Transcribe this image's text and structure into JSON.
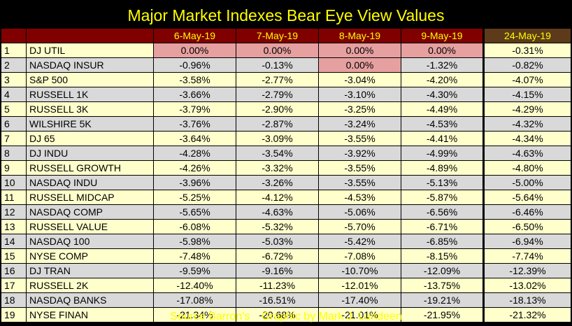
{
  "title": "Major Market Indexes Bear Eye View Values",
  "footer": {
    "source": "Source Barron's",
    "credit": "Graphic by Mark J. Lundeen"
  },
  "colors": {
    "background": "#000000",
    "title": "#ffff00",
    "header": "#800000",
    "header_last": "#5c3a1a",
    "row_odd": "#ffffcc",
    "row_even": "#d9d9d9",
    "zero_highlight": "#e6a0a0"
  },
  "chart_data": {
    "type": "table",
    "title": "Major Market Indexes Bear Eye View Values",
    "columns": [
      "6-May-19",
      "7-May-19",
      "8-May-19",
      "9-May-19",
      "24-May-19"
    ],
    "rows": [
      {
        "rank": "1",
        "name": "DJ  UTIL",
        "values": [
          "0.00%",
          "0.00%",
          "0.00%",
          "0.00%",
          "-0.31%"
        ]
      },
      {
        "rank": "2",
        "name": "NASDAQ INSUR",
        "values": [
          "-0.96%",
          "-0.13%",
          "0.00%",
          "-1.32%",
          "-0.82%"
        ]
      },
      {
        "rank": "3",
        "name": "S&P 500",
        "values": [
          "-3.58%",
          "-2.77%",
          "-3.04%",
          "-4.20%",
          "-4.07%"
        ]
      },
      {
        "rank": "4",
        "name": "RUSSELL 1K",
        "values": [
          "-3.66%",
          "-2.79%",
          "-3.10%",
          "-4.30%",
          "-4.15%"
        ]
      },
      {
        "rank": "5",
        "name": "RUSSELL 3K",
        "values": [
          "-3.79%",
          "-2.90%",
          "-3.25%",
          "-4.49%",
          "-4.29%"
        ]
      },
      {
        "rank": "6",
        "name": "WILSHIRE 5K",
        "values": [
          "-3.76%",
          "-2.87%",
          "-3.24%",
          "-4.53%",
          "-4.32%"
        ]
      },
      {
        "rank": "7",
        "name": "DJ  65",
        "values": [
          "-3.64%",
          "-3.09%",
          "-3.55%",
          "-4.41%",
          "-4.34%"
        ]
      },
      {
        "rank": "8",
        "name": "DJ  INDU",
        "values": [
          "-4.28%",
          "-3.54%",
          "-3.92%",
          "-4.99%",
          "-4.63%"
        ]
      },
      {
        "rank": "9",
        "name": "RUSSELL GROWTH",
        "values": [
          "-4.26%",
          "-3.32%",
          "-3.55%",
          "-4.89%",
          "-4.80%"
        ]
      },
      {
        "rank": "10",
        "name": "NASDAQ INDU",
        "values": [
          "-3.96%",
          "-3.26%",
          "-3.55%",
          "-5.13%",
          "-5.00%"
        ]
      },
      {
        "rank": "11",
        "name": "RUSSELL MIDCAP",
        "values": [
          "-5.25%",
          "-4.12%",
          "-4.53%",
          "-5.87%",
          "-5.64%"
        ]
      },
      {
        "rank": "12",
        "name": "NASDAQ COMP",
        "values": [
          "-5.65%",
          "-4.63%",
          "-5.06%",
          "-6.56%",
          "-6.46%"
        ]
      },
      {
        "rank": "13",
        "name": "RUSSELL VALUE",
        "values": [
          "-6.08%",
          "-5.32%",
          "-5.70%",
          "-6.71%",
          "-6.50%"
        ]
      },
      {
        "rank": "14",
        "name": "NASDAQ 100",
        "values": [
          "-5.98%",
          "-5.03%",
          "-5.42%",
          "-6.85%",
          "-6.94%"
        ]
      },
      {
        "rank": "15",
        "name": "NYSE COMP",
        "values": [
          "-7.48%",
          "-6.72%",
          "-7.08%",
          "-8.15%",
          "-7.74%"
        ]
      },
      {
        "rank": "16",
        "name": "DJ  TRAN",
        "values": [
          "-9.59%",
          "-9.16%",
          "-10.70%",
          "-12.09%",
          "-12.39%"
        ]
      },
      {
        "rank": "17",
        "name": "RUSSELL 2K",
        "values": [
          "-12.40%",
          "-11.23%",
          "-12.01%",
          "-13.75%",
          "-13.02%"
        ]
      },
      {
        "rank": "18",
        "name": "NASDAQ BANKS",
        "values": [
          "-17.08%",
          "-16.51%",
          "-17.40%",
          "-19.21%",
          "-18.13%"
        ]
      },
      {
        "rank": "19",
        "name": "NYSE FINAN",
        "values": [
          "-21.34%",
          "-20.68%",
          "-21.01%",
          "-21.95%",
          "-21.32%"
        ]
      }
    ]
  }
}
